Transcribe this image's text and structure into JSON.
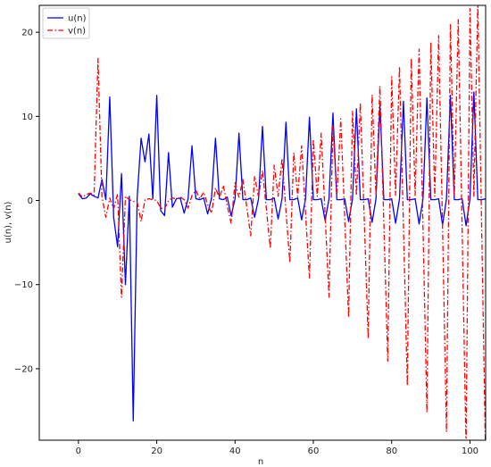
{
  "chart_data": {
    "type": "line",
    "title": "",
    "xlabel": "n",
    "ylabel": "u(n), v(n)",
    "xlim": [
      -10,
      104
    ],
    "ylim": [
      -28.5,
      23.2
    ],
    "xticks": [
      0,
      20,
      40,
      60,
      80,
      100
    ],
    "yticks": [
      -20,
      -10,
      0,
      10,
      20
    ],
    "grid": false,
    "legend_position": "top-left",
    "series": [
      {
        "name": "u(n)",
        "color": "#0000ff",
        "linestyle": "solid",
        "x": [
          0,
          1,
          2,
          3,
          4,
          5,
          6,
          7,
          8,
          9,
          10,
          11,
          12,
          13,
          14,
          15,
          16,
          17,
          18,
          19,
          20,
          21,
          22,
          23,
          24,
          25,
          26,
          27,
          28,
          29,
          30,
          31,
          32,
          33,
          34,
          35,
          36,
          37,
          38,
          39,
          40,
          41,
          42,
          43,
          44,
          45,
          46,
          47,
          48,
          49,
          50,
          51,
          52,
          53,
          54,
          55,
          56,
          57,
          58,
          59,
          60,
          61,
          62,
          63,
          64,
          65,
          66,
          67,
          68,
          69,
          70,
          71,
          72,
          73,
          74,
          75,
          76,
          77,
          78,
          79,
          80,
          81,
          82,
          83,
          84,
          85,
          86,
          87,
          88,
          89,
          90,
          91,
          92,
          93,
          94,
          95,
          96,
          97,
          98,
          99,
          100,
          101,
          102,
          103,
          104
        ],
        "y": [
          0.8,
          0.2,
          0.3,
          0.8,
          0.5,
          0.3,
          2.5,
          0.1,
          12.3,
          -2.0,
          -5.5,
          3.2,
          -10.0,
          0.5,
          -26.2,
          0.3,
          7.4,
          4.6,
          7.9,
          0.2,
          12.5,
          -1.2,
          -1.8,
          5.7,
          -0.8,
          0.2,
          0.3,
          -1.5,
          0.2,
          6.5,
          0.2,
          0.1,
          0.3,
          -1.6,
          0.3,
          7.4,
          0.2,
          0.1,
          0.4,
          -1.8,
          0.2,
          8.0,
          0.1,
          0.1,
          0.3,
          -2.0,
          0.2,
          8.8,
          0.1,
          0.1,
          0.3,
          -2.2,
          0.2,
          9.3,
          0.1,
          0.1,
          0.3,
          -2.3,
          0.2,
          9.9,
          0.1,
          0.1,
          0.2,
          -2.4,
          0.2,
          10.4,
          0.1,
          0.1,
          0.2,
          -2.5,
          0.2,
          10.9,
          0.1,
          0.1,
          0.2,
          -2.6,
          0.2,
          11.3,
          0.1,
          0.1,
          0.2,
          -2.7,
          0.2,
          11.8,
          0.1,
          0.1,
          0.2,
          -2.8,
          0.2,
          12.2,
          0.1,
          0.1,
          0.2,
          -2.9,
          0.2,
          12.5,
          0.1,
          0.1,
          0.2,
          -3.0,
          0.2,
          12.9,
          0.1,
          0.1,
          0.2
        ]
      },
      {
        "name": "v(n)",
        "color": "#ff0000",
        "linestyle": "dashdot",
        "x": [
          0,
          1,
          2,
          3,
          4,
          5,
          6,
          7,
          8,
          9,
          10,
          11,
          12,
          13,
          14,
          15,
          16,
          17,
          18,
          19,
          20,
          21,
          22,
          23,
          24,
          25,
          26,
          27,
          28,
          29,
          30,
          31,
          32,
          33,
          34,
          35,
          36,
          37,
          38,
          39,
          40,
          41,
          42,
          43,
          44,
          45,
          46,
          47,
          48,
          49,
          50,
          51,
          52,
          53,
          54,
          55,
          56,
          57,
          58,
          59,
          60,
          61,
          62,
          63,
          64,
          65,
          66,
          67,
          68,
          69,
          70,
          71,
          72,
          73,
          74,
          75,
          76,
          77,
          78,
          79,
          80,
          81,
          82,
          83,
          84,
          85,
          86,
          87,
          88,
          89,
          90,
          91,
          92,
          93,
          94,
          95,
          96,
          97,
          98,
          99,
          100,
          101,
          102,
          103,
          104
        ],
        "y": [
          0.9,
          0.4,
          0.7,
          0.9,
          0.6,
          16.9,
          0.5,
          -2.0,
          0.3,
          -1.0,
          0.8,
          -11.5,
          0.5,
          0.1,
          -0.1,
          -0.2,
          -2.5,
          0.1,
          0.2,
          0.1,
          0.0,
          -0.9,
          -1.0,
          0.0,
          0.3,
          0.2,
          0.4,
          0.1,
          -0.9,
          0.6,
          1.2,
          0.2,
          1.0,
          -0.5,
          -1.5,
          1.5,
          0.3,
          1.8,
          -0.6,
          -2.7,
          2.1,
          0.4,
          2.5,
          -0.8,
          -4.2,
          2.9,
          0.4,
          3.6,
          -1.0,
          -5.7,
          4.2,
          0.5,
          5.0,
          -1.2,
          -7.4,
          5.7,
          0.5,
          6.5,
          -1.5,
          -9.2,
          7.3,
          0.5,
          8.0,
          -1.7,
          -11.5,
          8.9,
          0.5,
          9.7,
          -2.0,
          -13.9,
          10.6,
          0.6,
          11.6,
          -2.3,
          -16.4,
          12.6,
          0.6,
          13.6,
          -2.6,
          -19.1,
          14.7,
          0.6,
          15.9,
          -2.9,
          -22.0,
          16.9,
          0.6,
          18.0,
          -3.1,
          -25.2,
          18.8,
          0.5,
          19.6,
          -3.3,
          -27.5,
          20.9,
          0.5,
          21.5,
          -3.5,
          -29.5,
          22.8,
          0.5,
          23.5,
          -3.6,
          -30.8
        ]
      }
    ]
  }
}
